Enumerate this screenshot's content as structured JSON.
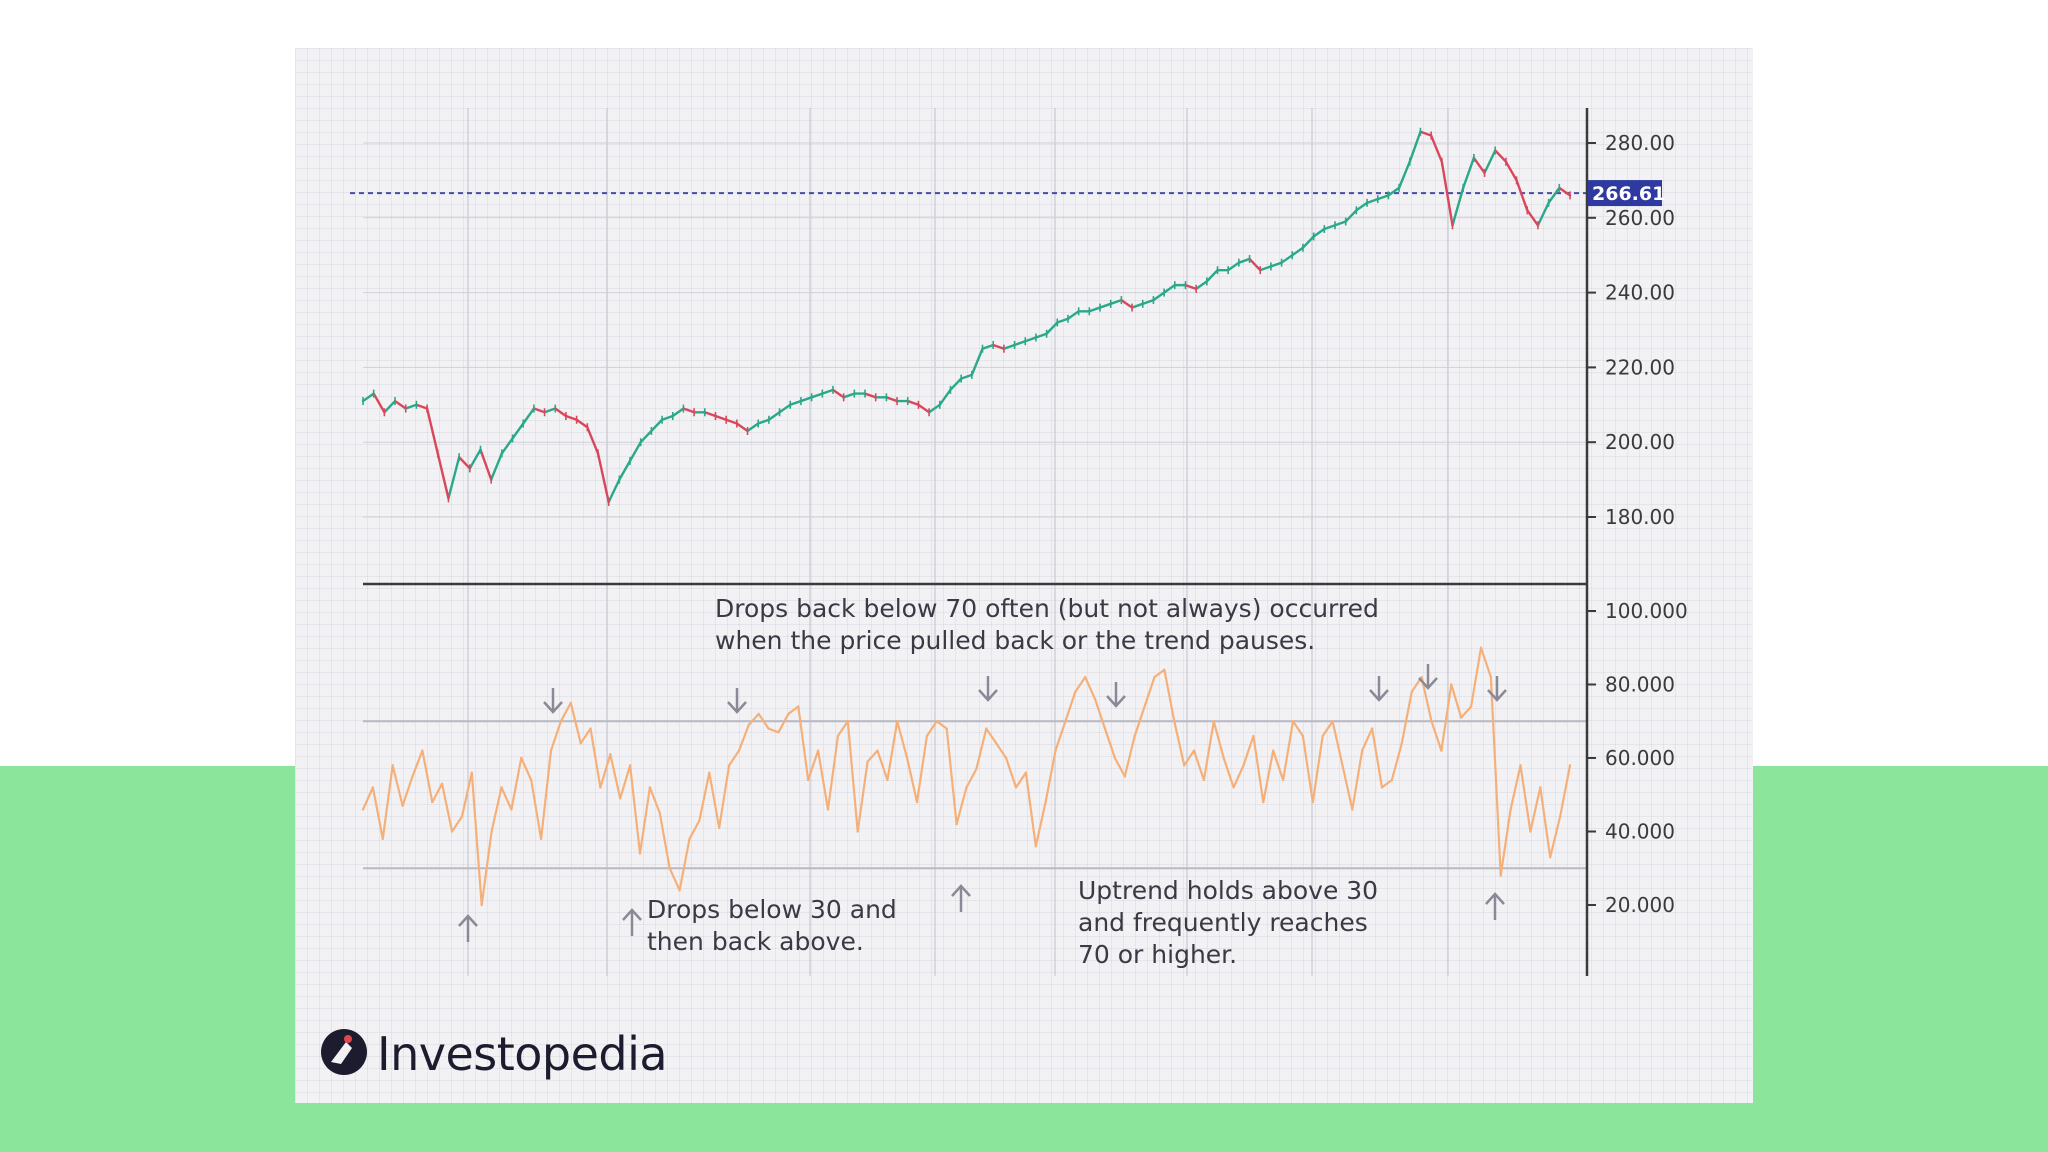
{
  "chart_data": [
    {
      "type": "line",
      "panel": "price",
      "ylim": [
        165,
        290
      ],
      "yticks": [
        280,
        260,
        240,
        220,
        200,
        180
      ],
      "tick_labels": [
        "280.00",
        "260.00",
        "240.00",
        "220.00",
        "200.00",
        "180.00"
      ],
      "current_price": 266.61,
      "current_price_label": "266.61",
      "colors": {
        "up": "#2aa889",
        "down": "#d9475a",
        "ref_line": "#4a4aa8",
        "price_tag": "#2f3aa0"
      },
      "series": [
        {
          "values": [
            211,
            213,
            208,
            211,
            209,
            210,
            209,
            197,
            185,
            196,
            193,
            198,
            190,
            197,
            201,
            205,
            209,
            208,
            209,
            207,
            206,
            204,
            197,
            184,
            190,
            195,
            200,
            203,
            206,
            207,
            209,
            208,
            208,
            207,
            206,
            205,
            203,
            205,
            206,
            208,
            210,
            211,
            212,
            213,
            214,
            212,
            213,
            213,
            212,
            212,
            211,
            211,
            210,
            208,
            210,
            214,
            217,
            218,
            225,
            226,
            225,
            226,
            227,
            228,
            229,
            232,
            233,
            235,
            235,
            236,
            237,
            238,
            236,
            237,
            238,
            240,
            242,
            242,
            241,
            243,
            246,
            246,
            248,
            249,
            246,
            247,
            248,
            250,
            252,
            255,
            257,
            258,
            259,
            262,
            264,
            265,
            266,
            268,
            275,
            283,
            282,
            275,
            258,
            268,
            276,
            272,
            278,
            275,
            270,
            262,
            258,
            264,
            268,
            266
          ]
        }
      ]
    },
    {
      "type": "line",
      "panel": "rsi",
      "ylim": [
        0,
        105
      ],
      "yticks": [
        100,
        80,
        60,
        40,
        20
      ],
      "tick_labels": [
        "100.000",
        "80.000",
        "60.000",
        "40.000",
        "20.000"
      ],
      "reference_lines": [
        70,
        30
      ],
      "colors": {
        "rsi": "#f5b07a",
        "ref": "#b9b9c4"
      },
      "series": [
        {
          "values": [
            46,
            52,
            38,
            58,
            47,
            55,
            62,
            48,
            53,
            40,
            44,
            56,
            20,
            40,
            52,
            46,
            60,
            54,
            38,
            62,
            70,
            75,
            64,
            68,
            52,
            61,
            49,
            58,
            34,
            52,
            45,
            30,
            24,
            38,
            43,
            56,
            41,
            58,
            62,
            69,
            72,
            68,
            67,
            72,
            74,
            54,
            62,
            46,
            66,
            70,
            40,
            59,
            62,
            54,
            70,
            60,
            48,
            66,
            70,
            68,
            42,
            52,
            57,
            68,
            64,
            60,
            52,
            56,
            36,
            48,
            62,
            70,
            78,
            82,
            76,
            68,
            60,
            55,
            66,
            74,
            82,
            84,
            70,
            58,
            62,
            54,
            70,
            60,
            52,
            58,
            66,
            48,
            62,
            54,
            70,
            66,
            48,
            66,
            70,
            58,
            46,
            62,
            68,
            52,
            54,
            64,
            78,
            82,
            70,
            62,
            80,
            71,
            74,
            90,
            82,
            28,
            46,
            58,
            40,
            52,
            33,
            44,
            58
          ]
        }
      ],
      "annotations": [
        "Drops back below 70 often (but not always) occurred",
        "when the price pulled back or the trend pauses.",
        "Drops below 30 and",
        "then back above.",
        "Uptrend holds above 30",
        "and frequently reaches",
        "70 or higher."
      ]
    }
  ],
  "brand": {
    "name": "Investopedia"
  }
}
